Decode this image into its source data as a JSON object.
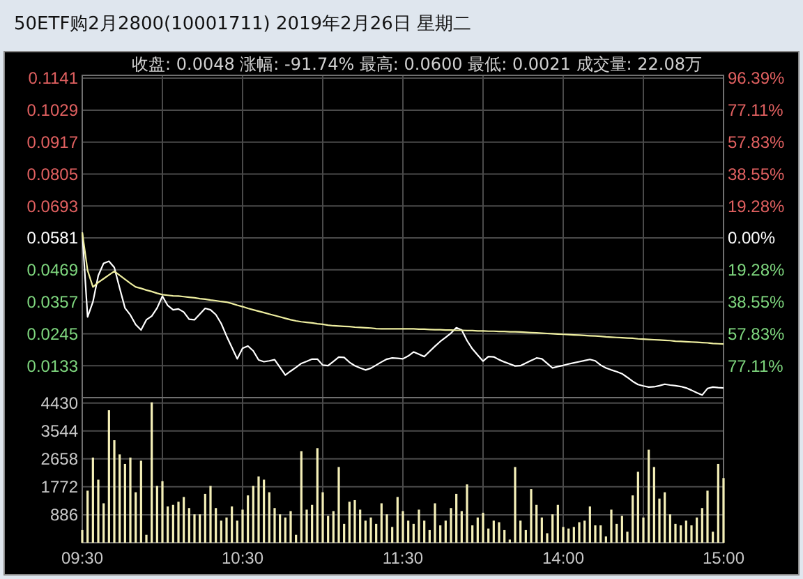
{
  "chart_data": [
    {
      "type": "line",
      "title": "50ETF购2月2800(10001711)  2019年2月26日  星期二",
      "subtitle": "收盘: 0.0048  涨幅: -91.74%  最高: 0.0600  最低: 0.0021  成交量: 22.08万",
      "categories": [
        null,
        null,
        null,
        null,
        null,
        null,
        null,
        null,
        null,
        null,
        null,
        null,
        null,
        null,
        null,
        null,
        null,
        null,
        null,
        null,
        null,
        null,
        null,
        null,
        null,
        null,
        null,
        null,
        null,
        null,
        null,
        null,
        null,
        null,
        null,
        null,
        null,
        null,
        null,
        null,
        null,
        null,
        null,
        null,
        null,
        null,
        null,
        null,
        null,
        null,
        null,
        null,
        null,
        null,
        null,
        null,
        null,
        null,
        null,
        null,
        null,
        null,
        null,
        null,
        null,
        null,
        null,
        null,
        null,
        null,
        null,
        null,
        null,
        null,
        null,
        null,
        null,
        null,
        null,
        null,
        null,
        null,
        null,
        null,
        null,
        null,
        null,
        null,
        null,
        null,
        null,
        null,
        null,
        null,
        null,
        null,
        null,
        null,
        null,
        null,
        null,
        null,
        null,
        null,
        null,
        null,
        null,
        null,
        null,
        null,
        null,
        null,
        null,
        null,
        null,
        null,
        null,
        null,
        null,
        null,
        null
      ],
      "ylim": [
        0.0021,
        0.1151
      ],
      "yticks": [
        0.0133,
        0.0245,
        0.0357,
        0.0469,
        0.0581,
        0.0693,
        0.0805,
        0.0917,
        0.1029,
        0.1141
      ],
      "y2lim": [
        -96.39,
        98.11
      ],
      "y2ticks": [
        {
          "value": 96.39,
          "label": "96.39%"
        },
        {
          "value": 77.11,
          "label": "77.11%"
        },
        {
          "value": 57.83,
          "label": "57.83%"
        },
        {
          "value": 38.55,
          "label": "38.55%"
        },
        {
          "value": 19.28,
          "label": "19.28%"
        },
        {
          "value": 0,
          "label": "0.00%"
        },
        {
          "value": -19.28,
          "label": "19.28%"
        },
        {
          "value": -38.55,
          "label": "38.55%"
        },
        {
          "value": -57.83,
          "label": "57.83%"
        },
        {
          "value": -77.11,
          "label": "77.11%"
        }
      ],
      "grid": true,
      "tick_labels": "y",
      "series": [
        {
          "color": "#ffffff",
          "values": [
            0.06,
            0.0304,
            0.0357,
            0.0449,
            0.0492,
            0.0499,
            0.0477,
            0.0405,
            0.0335,
            0.0311,
            0.0277,
            0.0258,
            0.0294,
            0.0307,
            0.0335,
            0.0377,
            0.0344,
            0.0329,
            0.0332,
            0.0321,
            0.0296,
            0.0294,
            0.0314,
            0.0334,
            0.0329,
            0.0312,
            0.0281,
            0.0237,
            0.0197,
            0.0157,
            0.0194,
            0.0202,
            0.0185,
            0.0153,
            0.0147,
            0.015,
            0.0154,
            0.0127,
            0.01,
            0.0114,
            0.0127,
            0.0141,
            0.0148,
            0.0156,
            0.0156,
            0.0135,
            0.0133,
            0.0148,
            0.0163,
            0.0162,
            0.0145,
            0.0133,
            0.0125,
            0.0118,
            0.0124,
            0.0135,
            0.0146,
            0.0156,
            0.016,
            0.0159,
            0.0157,
            0.0167,
            0.0181,
            0.0173,
            0.0165,
            0.0183,
            0.0201,
            0.0218,
            0.0232,
            0.0247,
            0.0266,
            0.0258,
            0.0221,
            0.0192,
            0.017,
            0.0149,
            0.0165,
            0.0164,
            0.0154,
            0.0146,
            0.0139,
            0.0132,
            0.0133,
            0.0142,
            0.0151,
            0.016,
            0.0157,
            0.0141,
            0.0125,
            0.013,
            0.0134,
            0.0139,
            0.0143,
            0.0147,
            0.0151,
            0.0155,
            0.015,
            0.0135,
            0.0125,
            0.0118,
            0.0112,
            0.0105,
            0.0092,
            0.0078,
            0.0067,
            0.0062,
            0.0058,
            0.0059,
            0.0063,
            0.0068,
            0.0065,
            0.0063,
            0.006,
            0.0055,
            0.0047,
            0.0038,
            0.003,
            0.0053,
            0.0058,
            0.0056,
            0.0055
          ]
        },
        {
          "color": "#eeeea0",
          "values": [
            0.06,
            0.0467,
            0.0409,
            0.0425,
            0.0438,
            0.0451,
            0.0464,
            0.045,
            0.0436,
            0.0422,
            0.0409,
            0.0404,
            0.0398,
            0.0393,
            0.0387,
            0.0382,
            0.038,
            0.0378,
            0.0377,
            0.0375,
            0.0373,
            0.0371,
            0.0368,
            0.0366,
            0.0363,
            0.0361,
            0.0358,
            0.0356,
            0.0351,
            0.0345,
            0.034,
            0.0334,
            0.0329,
            0.0324,
            0.0319,
            0.0314,
            0.0309,
            0.0304,
            0.0299,
            0.0294,
            0.029,
            0.0287,
            0.0285,
            0.0283,
            0.028,
            0.0278,
            0.0275,
            0.0273,
            0.0272,
            0.0271,
            0.027,
            0.0268,
            0.0267,
            0.0266,
            0.0265,
            0.0263,
            0.0262,
            0.0262,
            0.0262,
            0.0262,
            0.0262,
            0.0262,
            0.0262,
            0.0261,
            0.0261,
            0.026,
            0.0259,
            0.0259,
            0.0258,
            0.0258,
            0.0257,
            0.0257,
            0.0256,
            0.0256,
            0.0255,
            0.0255,
            0.0254,
            0.0254,
            0.0253,
            0.0253,
            0.0252,
            0.0252,
            0.0251,
            0.025,
            0.0249,
            0.0248,
            0.0247,
            0.0246,
            0.0245,
            0.0244,
            0.0243,
            0.0242,
            0.0241,
            0.024,
            0.0239,
            0.0238,
            0.0237,
            0.0236,
            0.0234,
            0.0233,
            0.0232,
            0.0231,
            0.023,
            0.0229,
            0.0227,
            0.0226,
            0.0225,
            0.0224,
            0.0223,
            0.0222,
            0.0221,
            0.0219,
            0.0218,
            0.0217,
            0.0216,
            0.0215,
            0.0214,
            0.0213,
            0.0211,
            0.021,
            0.0209
          ]
        }
      ]
    },
    {
      "type": "bar",
      "categories": [
        "09:30",
        null,
        null,
        null,
        null,
        null,
        null,
        null,
        null,
        null,
        null,
        null,
        null,
        null,
        null,
        null,
        null,
        null,
        null,
        null,
        null,
        null,
        null,
        null,
        null,
        null,
        null,
        null,
        null,
        null,
        "10:30",
        null,
        null,
        null,
        null,
        null,
        null,
        null,
        null,
        null,
        null,
        null,
        null,
        null,
        null,
        null,
        null,
        null,
        null,
        null,
        null,
        null,
        null,
        null,
        null,
        null,
        null,
        null,
        null,
        null,
        "11:30",
        null,
        null,
        null,
        null,
        null,
        null,
        null,
        null,
        null,
        null,
        null,
        null,
        null,
        null,
        null,
        null,
        null,
        null,
        null,
        null,
        null,
        null,
        null,
        null,
        null,
        null,
        null,
        null,
        null,
        "14:00",
        null,
        null,
        null,
        null,
        null,
        null,
        null,
        null,
        null,
        null,
        null,
        null,
        null,
        null,
        null,
        null,
        null,
        null,
        null,
        null,
        null,
        null,
        null,
        null,
        null,
        null,
        null,
        null,
        null,
        "15:00"
      ],
      "ylim": [
        0,
        4600
      ],
      "yticks": [
        886,
        1772,
        2658,
        3544,
        4430
      ],
      "grid": true,
      "series": [
        {
          "color": "#f5f0b8",
          "values": [
            400,
            1650,
            2700,
            2000,
            1250,
            4200,
            3250,
            2800,
            2500,
            2700,
            1600,
            2600,
            250,
            4450,
            1800,
            1950,
            1150,
            1200,
            1300,
            1450,
            1100,
            900,
            900,
            1550,
            1800,
            1100,
            700,
            800,
            1150,
            700,
            1050,
            1500,
            1800,
            2100,
            2000,
            1600,
            1100,
            900,
            800,
            1000,
            250,
            2900,
            1050,
            1200,
            3000,
            1600,
            850,
            1000,
            2400,
            600,
            1300,
            1350,
            1050,
            700,
            800,
            600,
            1250,
            900,
            500,
            1450,
            1000,
            700,
            600,
            1050,
            700,
            400,
            1250,
            550,
            700,
            1100,
            1550,
            1000,
            1850,
            550,
            800,
            950,
            450,
            700,
            650,
            400,
            100,
            2400,
            700,
            400,
            1700,
            1200,
            800,
            300,
            900,
            1200,
            500,
            450,
            500,
            650,
            700,
            1150,
            550,
            550,
            200,
            1050,
            600,
            850,
            350,
            1500,
            2250,
            800,
            2950,
            2400,
            1400,
            1600,
            900,
            600,
            550,
            700,
            550,
            800,
            1100,
            1650,
            350,
            2500,
            2050
          ]
        }
      ]
    }
  ]
}
